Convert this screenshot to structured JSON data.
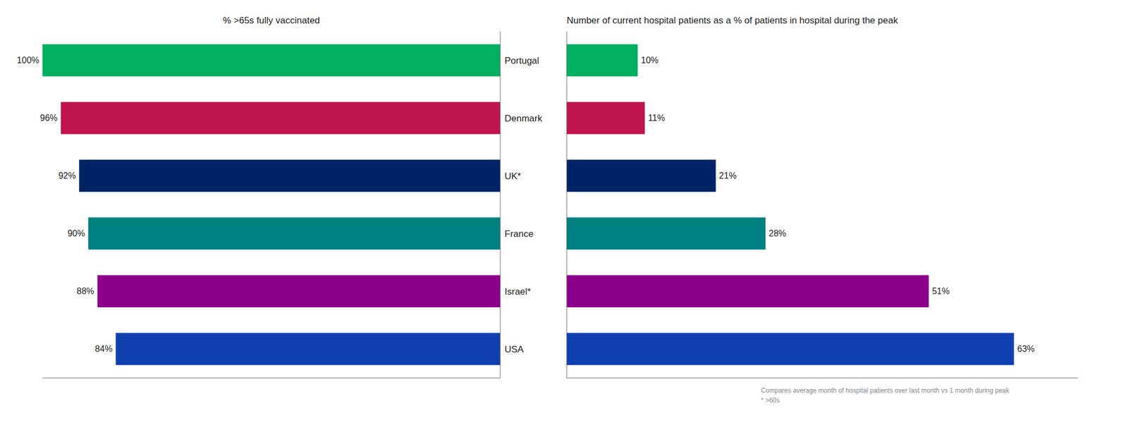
{
  "chart_data": [
    {
      "type": "bar",
      "orientation": "horizontal",
      "title": "% >65s fully vaccinated",
      "categories": [
        "USA",
        "Israel*",
        "France",
        "UK*",
        "Denmark",
        "Portugal"
      ],
      "values": [
        84,
        88,
        90,
        92,
        96,
        100
      ],
      "value_labels": [
        "84%",
        "88%",
        "90%",
        "92%",
        "96%",
        "100%"
      ],
      "colors": [
        "#1040b0",
        "#8b008b",
        "#008080",
        "#002366",
        "#c0144c",
        "#00b060"
      ],
      "xlim": [
        0,
        100
      ],
      "data_labels": true,
      "tick_labels": "y",
      "grid": false
    },
    {
      "type": "bar",
      "orientation": "horizontal",
      "title": "Number of current hospital patients as a % of patients in hospital during the peak",
      "categories": [
        "USA",
        "Israel*",
        "France",
        "UK*",
        "Denmark",
        "Portugal"
      ],
      "values": [
        63,
        51,
        28,
        21,
        11,
        10
      ],
      "value_labels": [
        "63%",
        "51%",
        "28%",
        "21%",
        "11%",
        "10%"
      ],
      "colors": [
        "#1040b0",
        "#8b008b",
        "#008080",
        "#002366",
        "#c0144c",
        "#00b060"
      ],
      "xlim": [
        0,
        72
      ],
      "data_labels": true,
      "tick_labels": false,
      "grid": false,
      "annotations": [
        "Compares average month of hospital patients over last month vs 1 month during peak",
        "* >60s"
      ]
    }
  ]
}
